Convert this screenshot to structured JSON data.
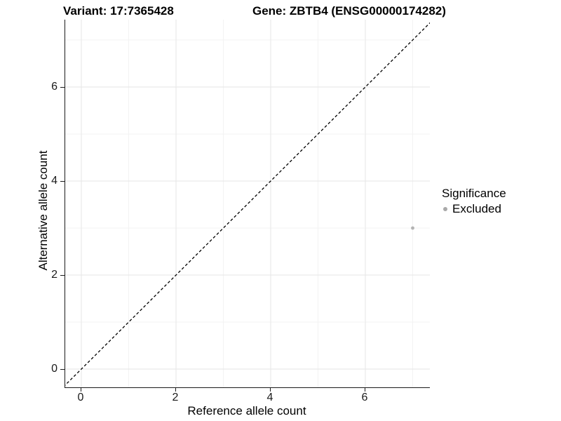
{
  "chart_data": {
    "type": "scatter",
    "titles": {
      "variant": "Variant: 17:7365428",
      "gene": "Gene: ZBTB4 (ENSG00000174282)"
    },
    "xlabel": "Reference allele count",
    "ylabel": "Alternative allele count",
    "x_ticks": [
      0,
      2,
      4,
      6
    ],
    "y_ticks": [
      0,
      2,
      4,
      6
    ],
    "x_minor": [
      1,
      3,
      5,
      7
    ],
    "y_minor": [
      1,
      3,
      5,
      7
    ],
    "xlim": [
      -0.35,
      7.35
    ],
    "ylim": [
      -0.35,
      7.35
    ],
    "grid": "major-and-minor",
    "identity_line": {
      "slope": 1,
      "intercept": 0,
      "style": "dashed",
      "color": "#000000"
    },
    "points": [
      {
        "x": 7,
        "y": 3,
        "significance": "Excluded",
        "color": "#b3b3b3"
      }
    ],
    "legend": {
      "title": "Significance",
      "position": "right",
      "items": [
        {
          "label": "Excluded",
          "color": "#a9a9a9"
        }
      ]
    },
    "colors": {
      "grid_major": "#e6e6e6",
      "grid_minor": "#f3f3f3",
      "axis_line": "#1a1a1a",
      "background": "#ffffff"
    }
  }
}
